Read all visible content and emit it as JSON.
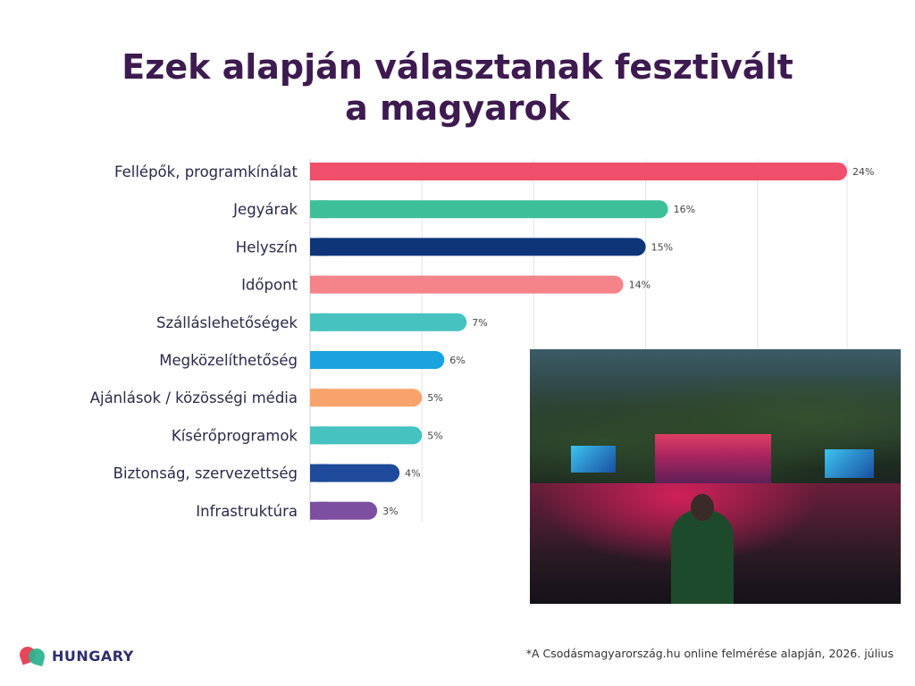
{
  "title": {
    "line1": "Ezek alapján választanak fesztivált",
    "line2": "a magyarok"
  },
  "chart_data": {
    "type": "bar",
    "orientation": "horizontal",
    "categories": [
      "Fellépők, programkínálat",
      "Jegyárak",
      "Helyszín",
      "Időpont",
      "Szálláslehetőségek",
      "Megközelíthetőség",
      "Ajánlások / közösségi média",
      "Kísérőprogramok",
      "Biztonság, szervezettség",
      "Infrastruktúra"
    ],
    "values": [
      24,
      16,
      15,
      14,
      7,
      6,
      5,
      5,
      4,
      3
    ],
    "value_labels": [
      "24%",
      "16%",
      "15%",
      "14%",
      "7%",
      "6%",
      "5%",
      "5%",
      "4%",
      "3%"
    ],
    "colors": [
      "#ef4f6b",
      "#3dbf9a",
      "#0f3579",
      "#f4838a",
      "#46c2c0",
      "#1aa3de",
      "#f9a36c",
      "#46c2c0",
      "#1f4a9b",
      "#7d4fa0"
    ],
    "xlim": [
      0,
      24
    ],
    "gridlines": [
      0,
      5,
      10,
      15,
      20,
      24
    ],
    "grid": true,
    "legend": false
  },
  "photo": {
    "icon": "festival-photo"
  },
  "logo": {
    "text": "HUNGARY",
    "icon": "hungary-logo-icon"
  },
  "footnote": "*A Csodásmagyarország.hu online felmérése alapján, 2026. július"
}
